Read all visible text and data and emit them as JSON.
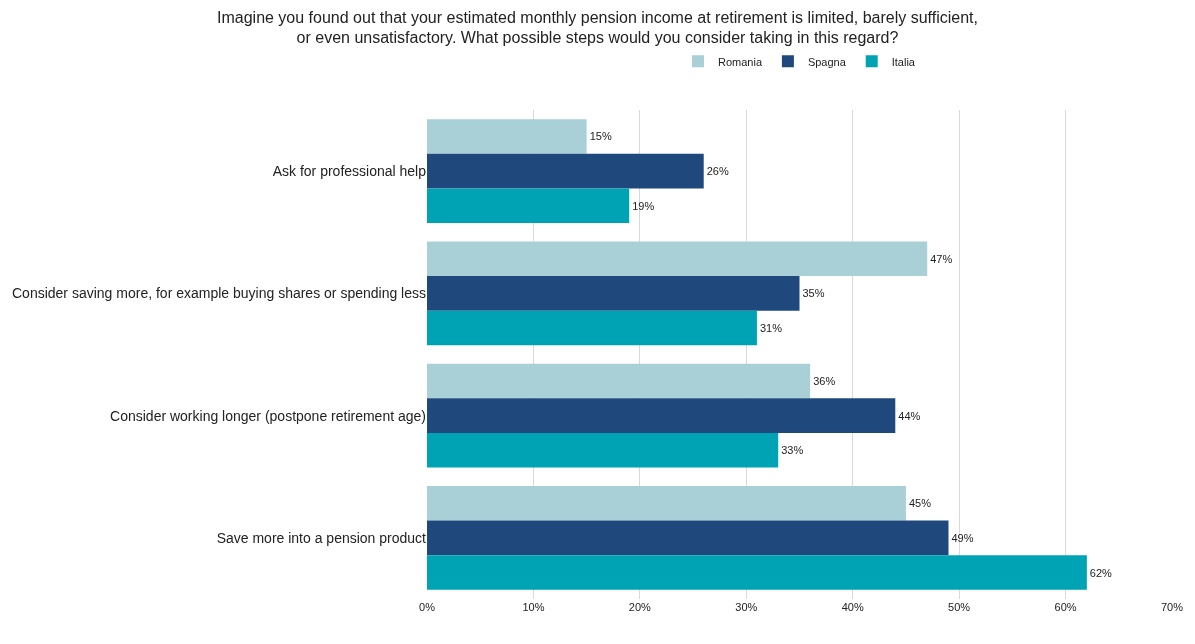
{
  "chart_data": {
    "type": "bar",
    "orientation": "horizontal",
    "title": "Imagine you found out that your estimated monthly pension income at retirement is limited, barely sufficient,\nor even unsatisfactory. What possible steps would you consider taking in this regard?",
    "categories": [
      "Ask for professional help",
      "Consider saving more, for example buying shares or spending less",
      "Consider working longer (postpone retirement age)",
      "Save more into a pension product"
    ],
    "series": [
      {
        "name": "Romania",
        "color": "#a8d0d6",
        "values": [
          15,
          47,
          36,
          45
        ],
        "value_labels": [
          "15%",
          "47%",
          "36%",
          "45%"
        ]
      },
      {
        "name": "Spagna",
        "color": "#1f497d",
        "values": [
          26,
          35,
          44,
          49
        ],
        "value_labels": [
          "26%",
          "35%",
          "44%",
          "49%"
        ]
      },
      {
        "name": "Italia",
        "color": "#00a3b4",
        "values": [
          19,
          31,
          33,
          62
        ],
        "value_labels": [
          "19%",
          "31%",
          "33%",
          "62%"
        ]
      }
    ],
    "xlim": [
      0,
      70
    ],
    "xticks": [
      {
        "value": 0,
        "label": "0%"
      },
      {
        "value": 10,
        "label": "10%"
      },
      {
        "value": 20,
        "label": "20%"
      },
      {
        "value": 30,
        "label": "30%"
      },
      {
        "value": 40,
        "label": "40%"
      },
      {
        "value": 50,
        "label": "50%"
      },
      {
        "value": 60,
        "label": "60%"
      },
      {
        "value": 70,
        "label": "70%"
      }
    ],
    "grid": "x",
    "legend": "top"
  }
}
